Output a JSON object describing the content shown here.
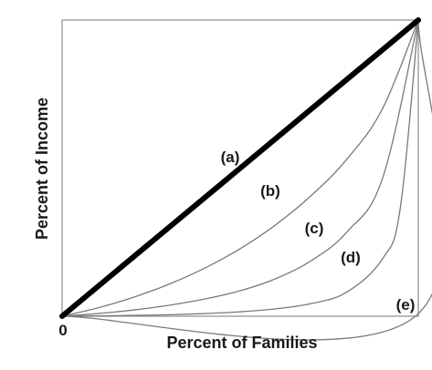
{
  "chart_data": {
    "type": "line",
    "title": "",
    "xlabel": "Percent of Families",
    "ylabel": "Percent of Income",
    "origin_label": "0",
    "xlim": [
      0,
      100
    ],
    "ylim": [
      0,
      100
    ],
    "grid": false,
    "legend": "none",
    "series": [
      {
        "label": "(a)",
        "color": "#000000",
        "emphasis": "thick",
        "x": [
          0,
          100
        ],
        "y": [
          0,
          100
        ]
      },
      {
        "label": "(b)",
        "color": "#7a7a7a",
        "x": [
          0,
          10,
          20,
          30,
          40,
          50,
          60,
          70,
          80,
          90,
          100
        ],
        "y": [
          0,
          2.8,
          6.4,
          10.8,
          16.2,
          22.8,
          30.9,
          40.8,
          53.1,
          70.2,
          100
        ]
      },
      {
        "label": "(c)",
        "color": "#7a7a7a",
        "x": [
          0,
          10,
          20,
          30,
          40,
          50,
          60,
          70,
          80,
          90,
          100
        ],
        "y": [
          0,
          0.9,
          2.1,
          3.7,
          5.8,
          8.6,
          12.7,
          18.8,
          28.5,
          46.7,
          100
        ]
      },
      {
        "label": "(d)",
        "color": "#7a7a7a",
        "x": [
          0,
          10,
          20,
          30,
          40,
          50,
          60,
          70,
          80,
          90,
          95,
          100
        ],
        "y": [
          0,
          0.1,
          0.3,
          0.5,
          0.9,
          1.5,
          2.5,
          4.3,
          8.2,
          19.5,
          37.0,
          100
        ]
      },
      {
        "label": "(e)",
        "color": "#7a7a7a",
        "x": [
          0,
          99.2,
          100
        ],
        "y": [
          0,
          0,
          100
        ]
      }
    ]
  }
}
